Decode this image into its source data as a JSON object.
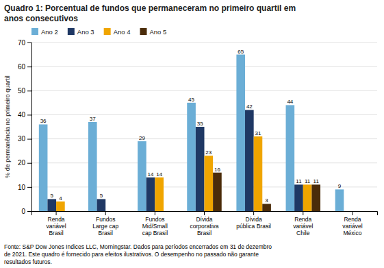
{
  "chart_data": {
    "type": "bar",
    "title": "Quadro 1: Porcentual de fundos que permaneceram no primeiro quartil em\nanos consecutivos",
    "categories": [
      "Renda\nvariável\nBrasil",
      "Fundos\nLarge cap\nBrasil",
      "Fundos\nMid/Small\ncap Brasil",
      "Dívida\ncorporativa\nBrasil",
      "Dívida\npública Brasil",
      "Renda\nvariável\nChile",
      "Renda\nvariável\nMéxico"
    ],
    "series": [
      {
        "name": "Ano 2",
        "color": "#6BAED6",
        "values": [
          36,
          37,
          29,
          45,
          65,
          44,
          9
        ],
        "value_labels": [
          "36",
          "37",
          "29",
          "45",
          "65",
          "44",
          "9"
        ]
      },
      {
        "name": "Ano 3",
        "color": "#1F3864",
        "values": [
          5,
          5,
          14,
          35,
          42,
          11,
          0
        ],
        "value_labels": [
          "5",
          "5",
          "14",
          "35",
          "42",
          "11",
          null
        ]
      },
      {
        "name": "Ano 4",
        "color": "#F0A500",
        "values": [
          4,
          0,
          14,
          23,
          31,
          11,
          0
        ],
        "value_labels": [
          "4",
          null,
          "14",
          "23",
          "31",
          "11",
          null
        ]
      },
      {
        "name": "Ano 5",
        "color": "#4B2C0A",
        "values": [
          0,
          0,
          0,
          16,
          3,
          11,
          0
        ],
        "value_labels": [
          null,
          null,
          null,
          "16",
          "3",
          "11",
          null
        ]
      }
    ],
    "ylabel": "% de permanência no primeiro quartil",
    "ylim": [
      0,
      70
    ],
    "yticks": [
      0,
      10,
      20,
      30,
      40,
      50,
      60,
      70
    ],
    "grid": true,
    "legend": "upper left",
    "data_labels": true,
    "footnote": "Fonte: S&P Dow Jones Indices LLC, Morningstar. Dados para períodos encerrados em 31 de dezembro\nde 2021. Este quadro é fornecido para efeitos ilustrativos. O desempenho no passado não garante\nresultados futuros."
  }
}
